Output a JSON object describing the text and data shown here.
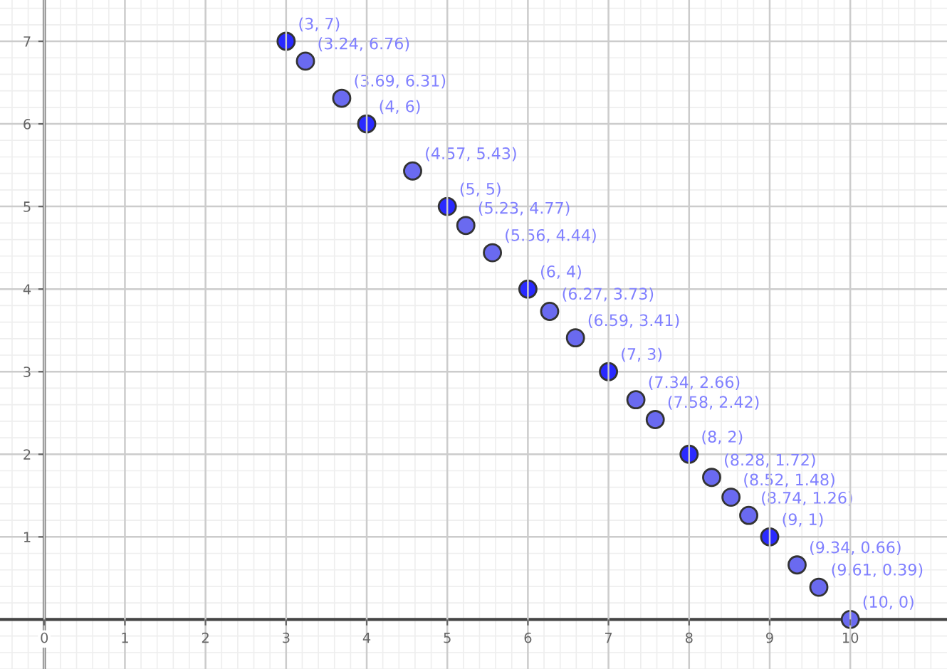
{
  "chart_data": {
    "type": "scatter",
    "xlim": [
      -0.55,
      11.2
    ],
    "ylim": [
      -0.6,
      7.5
    ],
    "xticks": [
      0,
      1,
      2,
      3,
      4,
      5,
      6,
      7,
      8,
      9,
      10
    ],
    "yticks": [
      1,
      2,
      3,
      4,
      5,
      6,
      7
    ],
    "grid": true,
    "marker": "circle",
    "legend": false,
    "series": [
      {
        "color": "#2a2aff",
        "x": [
          3,
          4,
          5,
          6,
          7,
          8,
          9
        ],
        "values": [
          7,
          6,
          5,
          4,
          3,
          2,
          1
        ],
        "value_labels": [
          "(3, 7)",
          "(4, 6)",
          "(5, 5)",
          "(6, 4)",
          "(7, 3)",
          "(8, 2)",
          "(9, 1)"
        ]
      },
      {
        "color": "#6a6af0",
        "x": [
          3.24,
          3.69,
          4.57,
          5.23,
          5.56,
          6.27,
          6.59,
          7.34,
          7.58,
          8.28,
          8.52,
          8.74,
          9.34,
          9.61,
          10
        ],
        "values": [
          6.76,
          6.31,
          5.43,
          4.77,
          4.44,
          3.73,
          3.41,
          2.66,
          2.42,
          1.72,
          1.48,
          1.26,
          0.66,
          0.39,
          0
        ],
        "value_labels": [
          "(3.24, 6.76)",
          "(3.69, 6.31)",
          "(4.57, 5.43)",
          "(5.23, 4.77)",
          "(5.56, 4.44)",
          "(6.27, 3.73)",
          "(6.59, 3.41)",
          "(7.34, 2.66)",
          "(7.58, 2.42)",
          "(8.28, 1.72)",
          "(8.52, 1.48)",
          "(8.74, 1.26)",
          "(9.34, 0.66)",
          "(9.61, 0.39)",
          "(10, 0)"
        ]
      }
    ]
  }
}
